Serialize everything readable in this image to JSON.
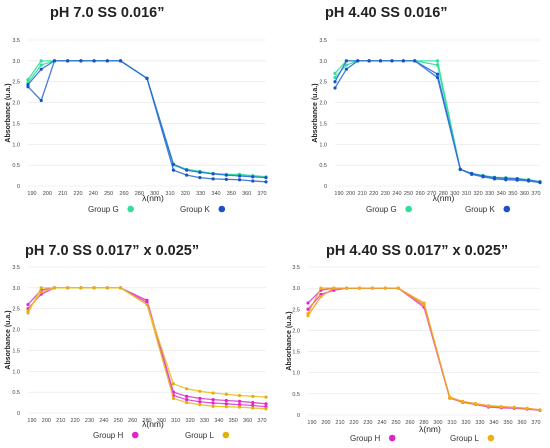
{
  "chart_data": [
    {
      "type": "line",
      "title": "pH 7.0 SS 0.016”",
      "xlabel": "λ(nm)",
      "ylabel": "Absorbance (u.a.)",
      "x": [
        190,
        200,
        210,
        220,
        230,
        240,
        250,
        260,
        280,
        300,
        310,
        320,
        330,
        340,
        350,
        360,
        370
      ],
      "x_ticks": [
        "190",
        "200",
        "210",
        "220",
        "240",
        "250",
        "260",
        "280",
        "300",
        "310",
        "320",
        "330",
        "340",
        "350",
        "360",
        "370"
      ],
      "y_ticks": [
        "0",
        "0.5",
        "1.0",
        "1.5",
        "2.0",
        "2.5",
        "3.0",
        "3.5"
      ],
      "ylim": [
        0,
        3.5
      ],
      "grid": true,
      "legend": "bottom",
      "series": [
        {
          "name": "Group G",
          "color": "#2fe09a",
          "markers": "#2fe09a",
          "lines": [
            [
              2.55,
              3.0,
              3.0,
              3.0,
              3.0,
              3.0,
              3.0,
              3.0,
              2.58,
              0.5,
              0.38,
              0.33,
              0.3,
              0.27,
              0.28,
              0.24,
              0.2
            ],
            [
              2.48,
              2.9,
              3.0,
              3.0,
              3.0,
              3.0,
              3.0,
              3.0,
              2.58,
              0.52,
              0.4,
              0.35,
              0.3,
              0.28,
              0.27,
              0.25,
              0.22
            ]
          ]
        },
        {
          "name": "Group K",
          "color": "#2f6fd8",
          "markers": "#1a52c4",
          "lines": [
            [
              2.38,
              2.05,
              3.0,
              3.0,
              3.0,
              3.0,
              3.0,
              3.0,
              2.58,
              0.52,
              0.38,
              0.33,
              0.29,
              0.26,
              0.24,
              0.22,
              0.2
            ],
            [
              2.43,
              2.8,
              3.0,
              3.0,
              3.0,
              3.0,
              3.0,
              3.0,
              2.58,
              0.38,
              0.26,
              0.2,
              0.17,
              0.16,
              0.15,
              0.12,
              0.1
            ]
          ]
        }
      ]
    },
    {
      "type": "line",
      "title": "pH 4.40 SS 0.016”",
      "xlabel": "λ(nm)",
      "ylabel": "Absorbance (u.a.)",
      "x": [
        190,
        200,
        210,
        220,
        230,
        240,
        250,
        260,
        280,
        300,
        310,
        320,
        330,
        340,
        350,
        360,
        370
      ],
      "x_ticks": [
        "190",
        "200",
        "210",
        "220",
        "230",
        "240",
        "250",
        "260",
        "270",
        "280",
        "300",
        "310",
        "320",
        "330",
        "340",
        "350",
        "360",
        "370"
      ],
      "y_ticks": [
        "0",
        "0.5",
        "1.0",
        "1.5",
        "2.0",
        "2.5",
        "3.0",
        "3.5"
      ],
      "ylim": [
        0,
        3.5
      ],
      "grid": true,
      "legend": "bottom",
      "series": [
        {
          "name": "Group G",
          "color": "#2fe09a",
          "markers": "#2fe09a",
          "lines": [
            [
              2.7,
              3.0,
              3.0,
              3.0,
              3.0,
              3.0,
              3.0,
              3.0,
              3.0,
              0.4,
              0.3,
              0.25,
              0.2,
              0.19,
              0.18,
              0.15,
              0.1
            ],
            [
              2.6,
              2.9,
              3.0,
              3.0,
              3.0,
              3.0,
              3.0,
              3.0,
              2.9,
              0.4,
              0.3,
              0.25,
              0.21,
              0.2,
              0.18,
              0.15,
              0.1
            ]
          ]
        },
        {
          "name": "Group K",
          "color": "#2f6fd8",
          "markers": "#1a52c4",
          "lines": [
            [
              2.35,
              2.8,
              3.0,
              3.0,
              3.0,
              3.0,
              3.0,
              3.0,
              2.68,
              0.4,
              0.28,
              0.22,
              0.17,
              0.15,
              0.14,
              0.12,
              0.08
            ],
            [
              2.5,
              3.0,
              3.0,
              3.0,
              3.0,
              3.0,
              3.0,
              3.0,
              2.6,
              0.4,
              0.3,
              0.24,
              0.2,
              0.18,
              0.17,
              0.14,
              0.1
            ]
          ]
        }
      ]
    },
    {
      "type": "line",
      "title": "pH 7.0 SS 0.017” x 0.025”",
      "xlabel": "λ(nm)",
      "ylabel": "Absorbance (u.a.)",
      "x": [
        190,
        200,
        210,
        220,
        230,
        240,
        250,
        260,
        280,
        300,
        310,
        320,
        330,
        340,
        350,
        360,
        370
      ],
      "x_ticks": [
        "190",
        "200",
        "210",
        "220",
        "230",
        "240",
        "250",
        "260",
        "280",
        "300",
        "310",
        "320",
        "330",
        "340",
        "350",
        "360",
        "370"
      ],
      "y_ticks": [
        "0",
        "0.5",
        "1.0",
        "1.5",
        "2.0",
        "2.5",
        "3.0",
        "3.5"
      ],
      "ylim": [
        0,
        3.5
      ],
      "grid": true,
      "legend": "bottom",
      "series": [
        {
          "name": "Group H",
          "color": "#e040d0",
          "markers": "#e024c8",
          "lines": [
            [
              2.6,
              2.95,
              3.0,
              3.0,
              3.0,
              3.0,
              3.0,
              3.0,
              2.7,
              0.5,
              0.4,
              0.35,
              0.32,
              0.3,
              0.28,
              0.25,
              0.22
            ],
            [
              2.5,
              2.85,
              3.0,
              3.0,
              3.0,
              3.0,
              3.0,
              3.0,
              2.65,
              0.42,
              0.32,
              0.27,
              0.24,
              0.22,
              0.2,
              0.18,
              0.15
            ]
          ]
        },
        {
          "name": "Group L",
          "color": "#e8c020",
          "markers": "#e0b010",
          "lines": [
            [
              2.4,
              3.0,
              3.0,
              3.0,
              3.0,
              3.0,
              3.0,
              3.0,
              2.6,
              0.7,
              0.58,
              0.52,
              0.48,
              0.45,
              0.42,
              0.4,
              0.38
            ],
            [
              2.45,
              2.9,
              3.0,
              3.0,
              3.0,
              3.0,
              3.0,
              3.0,
              2.6,
              0.35,
              0.25,
              0.2,
              0.16,
              0.15,
              0.14,
              0.12,
              0.1
            ]
          ]
        }
      ]
    },
    {
      "type": "line",
      "title": "pH 4.40 SS 0.017” x 0.025”",
      "xlabel": "λ(nm)",
      "ylabel": "Absorbance (u.a.)",
      "x": [
        190,
        200,
        210,
        220,
        230,
        240,
        250,
        260,
        280,
        300,
        310,
        320,
        330,
        340,
        350,
        360,
        370
      ],
      "x_ticks": [
        "190",
        "200",
        "210",
        "220",
        "230",
        "240",
        "250",
        "260",
        "280",
        "300",
        "310",
        "320",
        "330",
        "340",
        "350",
        "360",
        "370"
      ],
      "y_ticks": [
        "0",
        "0.5",
        "1.0",
        "1.5",
        "2.0",
        "2.5",
        "3.0",
        "3.5"
      ],
      "ylim": [
        0,
        3.5
      ],
      "grid": true,
      "legend": "bottom",
      "series": [
        {
          "name": "Group H",
          "color": "#e040d0",
          "markers": "#e024c8",
          "lines": [
            [
              2.65,
              2.95,
              3.0,
              3.0,
              3.0,
              3.0,
              3.0,
              3.0,
              2.6,
              0.4,
              0.32,
              0.26,
              0.2,
              0.18,
              0.17,
              0.15,
              0.12
            ],
            [
              2.5,
              2.85,
              2.95,
              3.0,
              3.0,
              3.0,
              3.0,
              3.0,
              2.55,
              0.4,
              0.3,
              0.25,
              0.19,
              0.17,
              0.16,
              0.14,
              0.11
            ]
          ]
        },
        {
          "name": "Group L",
          "color": "#f0a020",
          "markers": "#f0b010",
          "lines": [
            [
              2.4,
              3.0,
              3.0,
              3.0,
              3.0,
              3.0,
              3.0,
              3.0,
              2.6,
              0.42,
              0.32,
              0.27,
              0.22,
              0.2,
              0.18,
              0.15,
              0.12
            ],
            [
              2.35,
              2.8,
              3.0,
              3.0,
              3.0,
              3.0,
              3.0,
              3.0,
              2.65,
              0.4,
              0.31,
              0.26,
              0.21,
              0.19,
              0.18,
              0.16,
              0.12
            ]
          ]
        }
      ]
    }
  ]
}
